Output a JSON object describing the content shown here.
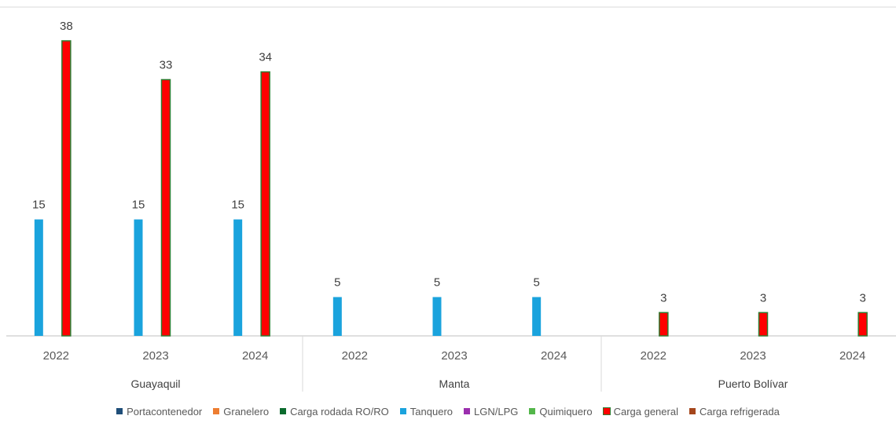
{
  "chart_data": {
    "type": "bar",
    "groups": [
      {
        "name": "Guayaquil",
        "categories": [
          "2022",
          "2023",
          "2024"
        ]
      },
      {
        "name": "Manta",
        "categories": [
          "2022",
          "2023",
          "2024"
        ]
      },
      {
        "name": "Puerto Bolívar",
        "categories": [
          "2022",
          "2023",
          "2024"
        ]
      }
    ],
    "series": [
      {
        "name": "Portacontenedor",
        "color": "#1f4e79",
        "values": [
          null,
          null,
          null,
          null,
          null,
          null,
          null,
          null,
          null
        ]
      },
      {
        "name": "Granelero",
        "color": "#ed7d31",
        "values": [
          null,
          null,
          null,
          null,
          null,
          null,
          null,
          null,
          null
        ]
      },
      {
        "name": "Carga rodada RO/RO",
        "color": "#0b6b2e",
        "values": [
          null,
          null,
          null,
          null,
          null,
          null,
          null,
          null,
          null
        ]
      },
      {
        "name": "Tanquero",
        "color": "#1aa3dd",
        "values": [
          15,
          15,
          15,
          5,
          5,
          5,
          null,
          null,
          null
        ]
      },
      {
        "name": "LGN/LPG",
        "color": "#9b2fae",
        "values": [
          null,
          null,
          null,
          null,
          null,
          null,
          null,
          null,
          null
        ]
      },
      {
        "name": "Quimiquero",
        "color": "#53b64a",
        "values": [
          null,
          null,
          null,
          null,
          null,
          null,
          null,
          null,
          null
        ]
      },
      {
        "name": "Carga general",
        "color": "#ff0000",
        "border": "#2e7d32",
        "values": [
          38,
          33,
          34,
          null,
          null,
          null,
          3,
          3,
          3
        ]
      },
      {
        "name": "Carga refrigerada",
        "color": "#a5461c",
        "values": [
          null,
          null,
          null,
          null,
          null,
          null,
          null,
          null,
          null
        ]
      }
    ],
    "data_labels": true,
    "ylim": [
      0,
      42
    ],
    "grid": false,
    "legend_position": "bottom",
    "title": "",
    "xlabel": "",
    "ylabel": ""
  }
}
